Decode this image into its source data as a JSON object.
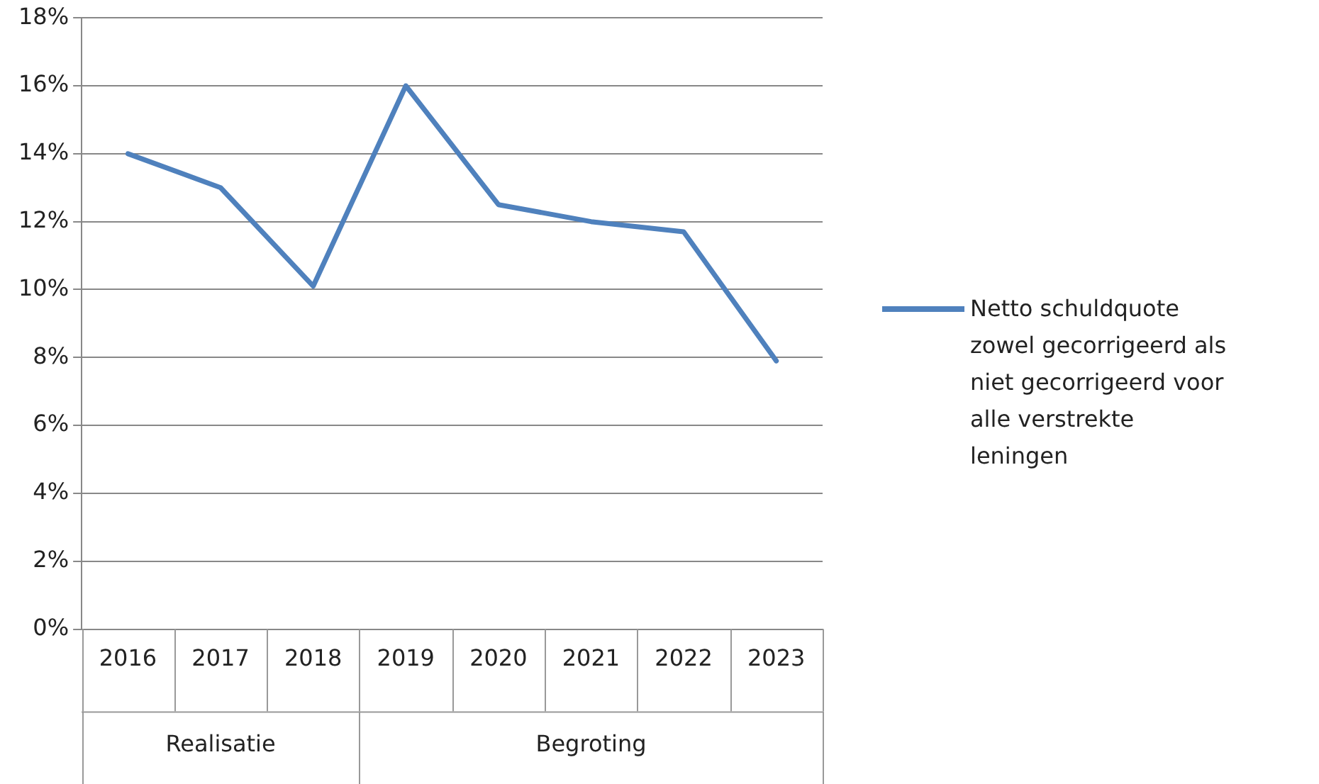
{
  "chart_data": {
    "type": "line",
    "categories": [
      "2016",
      "2017",
      "2018",
      "2019",
      "2020",
      "2021",
      "2022",
      "2023"
    ],
    "series": [
      {
        "name": "Netto schuldquote zowel gecorrigeerd als niet gecorrigeerd voor alle verstrekte leningen",
        "color": "#4f81bd",
        "values": [
          14,
          13,
          10.1,
          16,
          12.5,
          12,
          11.7,
          7.9
        ]
      }
    ],
    "ylim": [
      0,
      18
    ],
    "yticks": [
      {
        "value": 0,
        "label": "0%"
      },
      {
        "value": 2,
        "label": "2%"
      },
      {
        "value": 4,
        "label": "4%"
      },
      {
        "value": 6,
        "label": "6%"
      },
      {
        "value": 8,
        "label": "8%"
      },
      {
        "value": 10,
        "label": "10%"
      },
      {
        "value": 12,
        "label": "12%"
      },
      {
        "value": 14,
        "label": "14%"
      },
      {
        "value": 16,
        "label": "16%"
      },
      {
        "value": 18,
        "label": "18%"
      }
    ],
    "annotations": [
      "Realisatie",
      "Begroting"
    ],
    "grid": "y",
    "legend": "right",
    "marker": "none",
    "line_style": "solid"
  }
}
